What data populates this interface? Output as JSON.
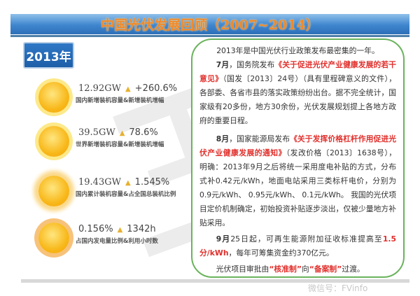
{
  "title": "中国光伏发展回顾（2007~2014）",
  "year": "2013年",
  "stats": [
    {
      "value1": "12.92GW",
      "value2": "+260.6%",
      "caption": "国内新增装机容量&新增装机增幅"
    },
    {
      "value1": "39.5GW",
      "value2": "78.6%",
      "caption": "世界新增装机容量&新增装机增幅"
    },
    {
      "value1": "19.43GW",
      "value2": "1.545%",
      "caption": "国内累计装机容量&占全国总装机比例"
    },
    {
      "value1": "0.156%",
      "value2": "1342h",
      "caption": "占国内发电量比例&利用小时数"
    }
  ],
  "triangle": "▲",
  "text": {
    "intro": "2013年是中国光伏行业政策发布最密集的一年。",
    "p1_month": "7月",
    "p1_a": "，国务院发布",
    "p1_doc": "《关于促进光伏产业健康发展的若干意见》",
    "p1_b": "（国发〔2013〕24号）（具有里程碑意义的文件），各部委、各省市县的落实政策纷纷出台。据不完全统计，国家级有20多份，地方30余份，光伏发展规划提上各地方政府的重要日程。",
    "p2_month": "8月",
    "p2_a": "，国家能源局发布",
    "p2_doc": "《关于发挥价格杠杆作用促进光伏产业健康发展的通知》",
    "p2_b": "（发改价格〔2013〕1638号），明确：2013年9月之后将统一采用度电补贴的方式，分布式补0.42元/kWh，地面电站采用三类标杆电价，分别为0.9元/kWh、 0.95元/kWh、 0.1元/kWh。 我国的光伏项目定价机制确定，初始投资补贴逐步淡出，仅被少量地方补贴采用。",
    "p3_month": "9月",
    "p3_a": "25日起，可再生能源附加征收标准提高至",
    "p3_red": "1.5分/kWh",
    "p3_b": "，每年可筹集资金约370亿元。",
    "p4_a": "光伏项目审批由",
    "p4_red1": "“核准制”",
    "p4_b": "向",
    "p4_red2": "“备案制”",
    "p4_c": "过渡。"
  },
  "watermark": "微信号：FVinfo"
}
